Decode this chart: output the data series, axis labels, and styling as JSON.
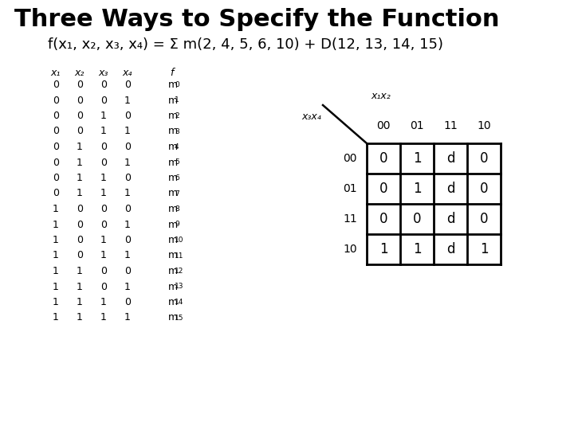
{
  "title": "Three Ways to Specify the Function",
  "title_fontsize": 22,
  "subtitle": "f(x₁, x₂, x₃, x₄) = Σ m(2, 4, 5, 6, 10) + D(12, 13, 14, 15)",
  "subtitle_fontsize": 13,
  "bg_color": "#ffffff",
  "table_header": [
    "x₁",
    "x₂",
    "x₃",
    "x₄",
    "f"
  ],
  "table_rows": [
    [
      "0",
      "0",
      "0",
      "0",
      "m",
      "0"
    ],
    [
      "0",
      "0",
      "0",
      "1",
      "m",
      "1"
    ],
    [
      "0",
      "0",
      "1",
      "0",
      "m",
      "2"
    ],
    [
      "0",
      "0",
      "1",
      "1",
      "m",
      "3"
    ],
    [
      "0",
      "1",
      "0",
      "0",
      "m",
      "4"
    ],
    [
      "0",
      "1",
      "0",
      "1",
      "m",
      "5"
    ],
    [
      "0",
      "1",
      "1",
      "0",
      "m",
      "6"
    ],
    [
      "0",
      "1",
      "1",
      "1",
      "m",
      "7"
    ],
    [
      "1",
      "0",
      "0",
      "0",
      "m",
      "8"
    ],
    [
      "1",
      "0",
      "0",
      "1",
      "m",
      "9"
    ],
    [
      "1",
      "0",
      "1",
      "0",
      "m",
      "10"
    ],
    [
      "1",
      "0",
      "1",
      "1",
      "m",
      "11"
    ],
    [
      "1",
      "1",
      "0",
      "0",
      "m",
      "12"
    ],
    [
      "1",
      "1",
      "0",
      "1",
      "m",
      "13"
    ],
    [
      "1",
      "1",
      "1",
      "0",
      "m",
      "14"
    ],
    [
      "1",
      "1",
      "1",
      "1",
      "m",
      "15"
    ]
  ],
  "kmap_col_headers": [
    "00",
    "01",
    "11",
    "10"
  ],
  "kmap_row_headers": [
    "00",
    "01",
    "11",
    "10"
  ],
  "kmap_data": [
    [
      "0",
      "1",
      "d",
      "0"
    ],
    [
      "0",
      "1",
      "d",
      "0"
    ],
    [
      "0",
      "0",
      "d",
      "0"
    ],
    [
      "1",
      "1",
      "d",
      "1"
    ]
  ],
  "kmap_x1x2_label": "x₁x₂",
  "kmap_x3x4_label": "x₃x₄"
}
